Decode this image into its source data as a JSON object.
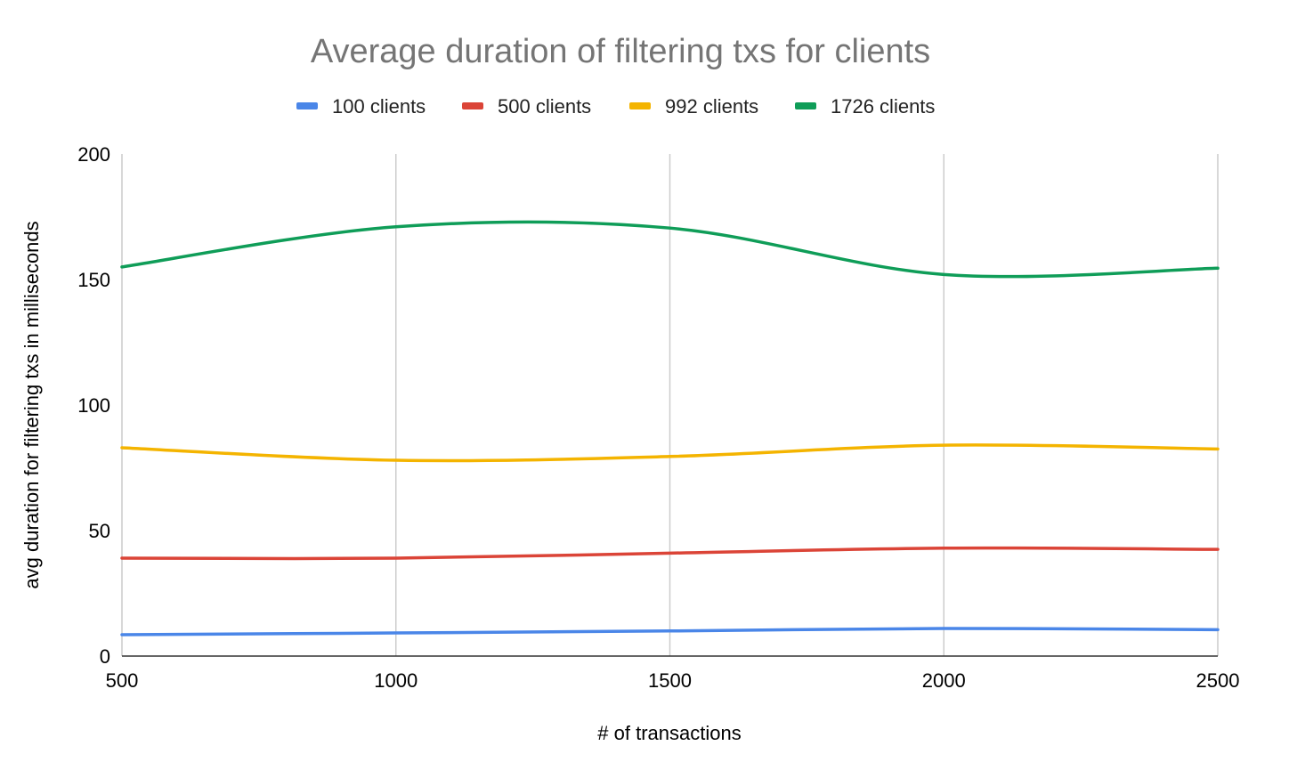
{
  "chart_data": {
    "type": "line",
    "title": "Average duration of filtering txs for clients",
    "xlabel": "# of transactions",
    "ylabel": "avg duration for filtering txs in milliseconds",
    "x": [
      500,
      1000,
      1500,
      2000,
      2500
    ],
    "xticks": [
      500,
      1000,
      1500,
      2000,
      2500
    ],
    "yticks": [
      0,
      50,
      100,
      150,
      200
    ],
    "xlim": [
      500,
      2500
    ],
    "ylim": [
      0,
      200
    ],
    "grid": "vertical",
    "legend": "top",
    "smooth": true,
    "series": [
      {
        "name": "100 clients",
        "color": "#4a86e8",
        "values": [
          8.5,
          9.2,
          10.0,
          11.0,
          10.5
        ]
      },
      {
        "name": "500 clients",
        "color": "#db4437",
        "values": [
          39,
          39,
          41,
          43,
          42.5
        ]
      },
      {
        "name": "992 clients",
        "color": "#f4b400",
        "values": [
          83,
          78,
          79.5,
          84,
          82.5
        ]
      },
      {
        "name": "1726 clients",
        "color": "#0f9d58",
        "values": [
          155,
          171,
          170.5,
          152,
          154.5
        ]
      }
    ]
  }
}
